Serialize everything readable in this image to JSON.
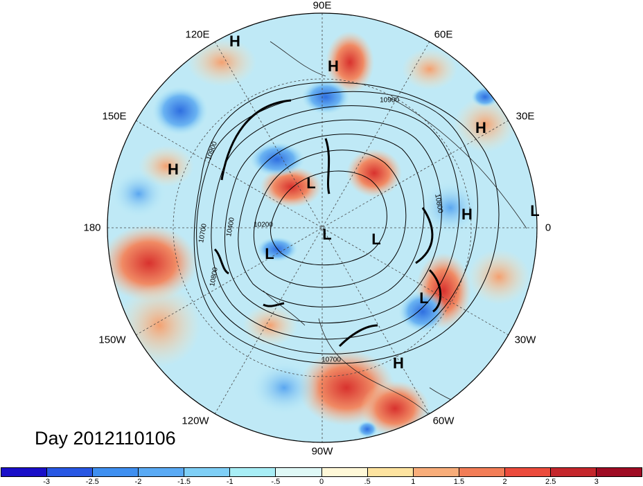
{
  "map": {
    "projection": "north-polar-stereographic",
    "longitude_labels": [
      "90E",
      "60E",
      "30E",
      "0",
      "30W",
      "60W",
      "90W",
      "120W",
      "150W",
      "180",
      "150E",
      "120E"
    ],
    "contour_labels": [
      "10900",
      "10900",
      "10800",
      "10700",
      "10400",
      "10200",
      "10800",
      "10700"
    ],
    "pressure_centers": [
      "H",
      "H",
      "H",
      "H",
      "H",
      "H",
      "L",
      "L",
      "L",
      "L",
      "L",
      "L"
    ]
  },
  "caption": {
    "day": "Day 2012110106"
  },
  "colorbar": {
    "ticks": [
      "-3",
      "-2.5",
      "-2",
      "-1.5",
      "-1",
      "-.5",
      "0",
      ".5",
      "1",
      "1.5",
      "2",
      "2.5",
      "3"
    ],
    "colors": [
      "#1a0fc8",
      "#2857e3",
      "#3f8ff0",
      "#5aaaf4",
      "#7fcff6",
      "#a8eef6",
      "#dff8f6",
      "#fff8d8",
      "#fde3a0",
      "#f8ad7a",
      "#f27d57",
      "#eb4b3c",
      "#c4262b",
      "#9e0c23"
    ]
  }
}
